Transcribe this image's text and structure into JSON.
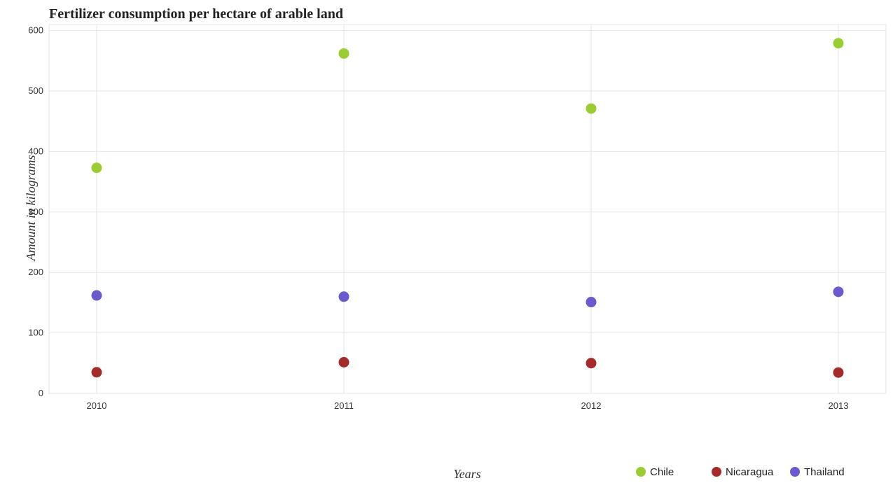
{
  "chart_data": {
    "type": "scatter",
    "title": "Fertilizer consumption per hectare of arable land",
    "xlabel": "Years",
    "ylabel": "Amount in kilograms",
    "categories": [
      "2010",
      "2011",
      "2012",
      "2013"
    ],
    "ylim": [
      0,
      610
    ],
    "yticks": [
      0,
      100,
      200,
      300,
      400,
      500,
      600
    ],
    "grid": true,
    "legend_position": "bottom-right",
    "series": [
      {
        "name": "Chile",
        "color": "#9acd32",
        "values": [
          373,
          562,
          471,
          579
        ]
      },
      {
        "name": "Nicaragua",
        "color": "#a52a2a",
        "values": [
          35,
          51.5,
          50,
          34.5
        ]
      },
      {
        "name": "Thailand",
        "color": "#6a5acd",
        "values": [
          162,
          160,
          151,
          168
        ]
      }
    ]
  }
}
